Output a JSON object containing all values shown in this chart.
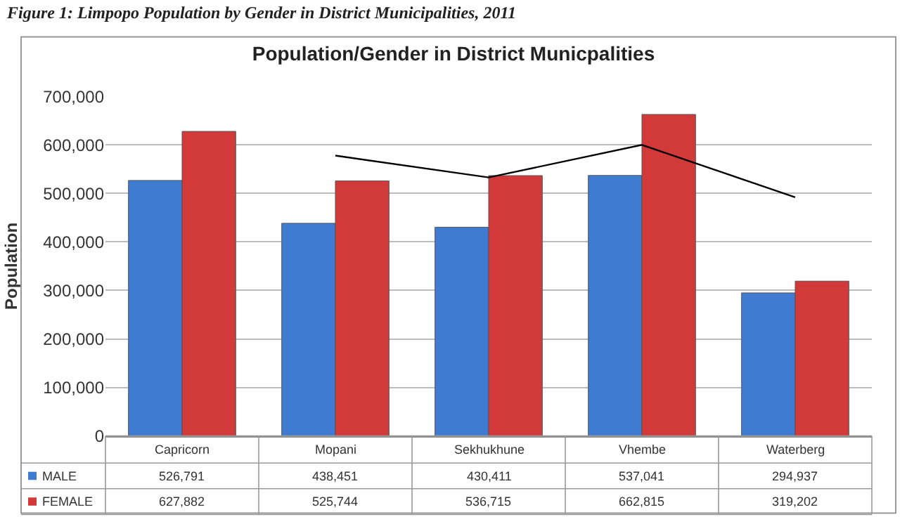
{
  "chart_data": {
    "type": "bar",
    "title": "Population/Gender in District Municpalities",
    "ylabel": "Population",
    "annotations": [
      "Figure 1: Limpopo Population by Gender in District Municipalities, 2011"
    ],
    "categories": [
      "Capricorn",
      "Mopani",
      "Sekhukhune",
      "Vhembe",
      "Waterberg"
    ],
    "series": [
      {
        "name": "MALE",
        "color": "#3f7bd0",
        "values": [
          526791,
          438451,
          430411,
          537041,
          294937
        ],
        "value_labels": [
          "526,791",
          "438,451",
          "430,411",
          "537,041",
          "294,937"
        ]
      },
      {
        "name": "FEMALE",
        "color": "#d23a3a",
        "values": [
          627882,
          525744,
          536715,
          662815,
          319202
        ],
        "value_labels": [
          "627,882",
          "525,744",
          "536,715",
          "662,815",
          "319,202"
        ]
      },
      {
        "type": "line",
        "color": "#000000",
        "marker": "none",
        "values": [
          null,
          578000,
          533000,
          600000,
          492000
        ]
      }
    ],
    "ylim": [
      0,
      700000
    ],
    "yticks": [
      0,
      {
        "value": 100000,
        "label": "100,000"
      },
      {
        "value": 200000,
        "label": "200,000"
      },
      {
        "value": 300000,
        "label": "300,000"
      },
      {
        "value": 400000,
        "label": "400,000"
      },
      {
        "value": 500000,
        "label": "500,000"
      },
      {
        "value": 600000,
        "label": "600,000"
      },
      {
        "value": 700000,
        "label": "700,000"
      }
    ],
    "grid": "y",
    "legend": "bottom left"
  }
}
